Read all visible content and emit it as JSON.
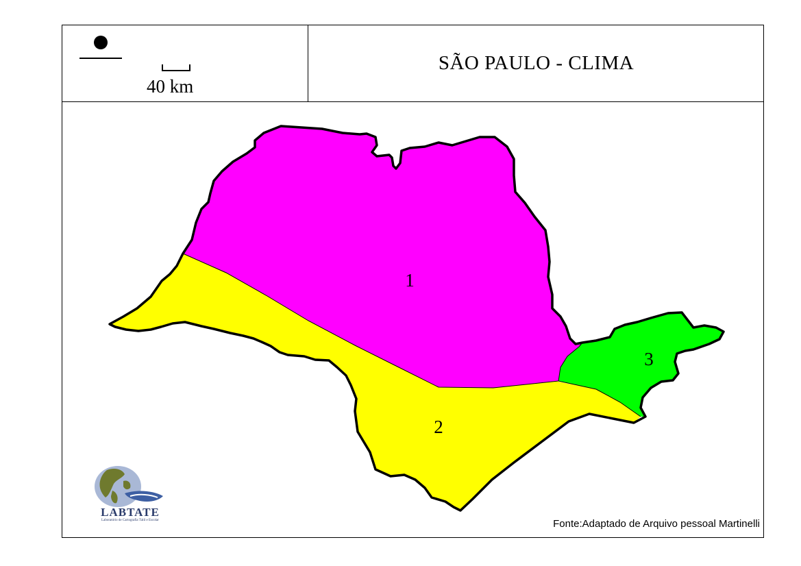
{
  "title": "SÃO PAULO - CLIMA",
  "scale": {
    "label": "40 km"
  },
  "regions": [
    {
      "id": "1",
      "color": "#ff00ff"
    },
    {
      "id": "2",
      "color": "#ffff00"
    },
    {
      "id": "3",
      "color": "#00ff00"
    }
  ],
  "source": "Fonte:Adaptado de Arquivo pessoal Martinelli",
  "logo": {
    "name": "LABTATE",
    "subtitle": "Laboratório de Cartografia Tátil e Escolar"
  }
}
